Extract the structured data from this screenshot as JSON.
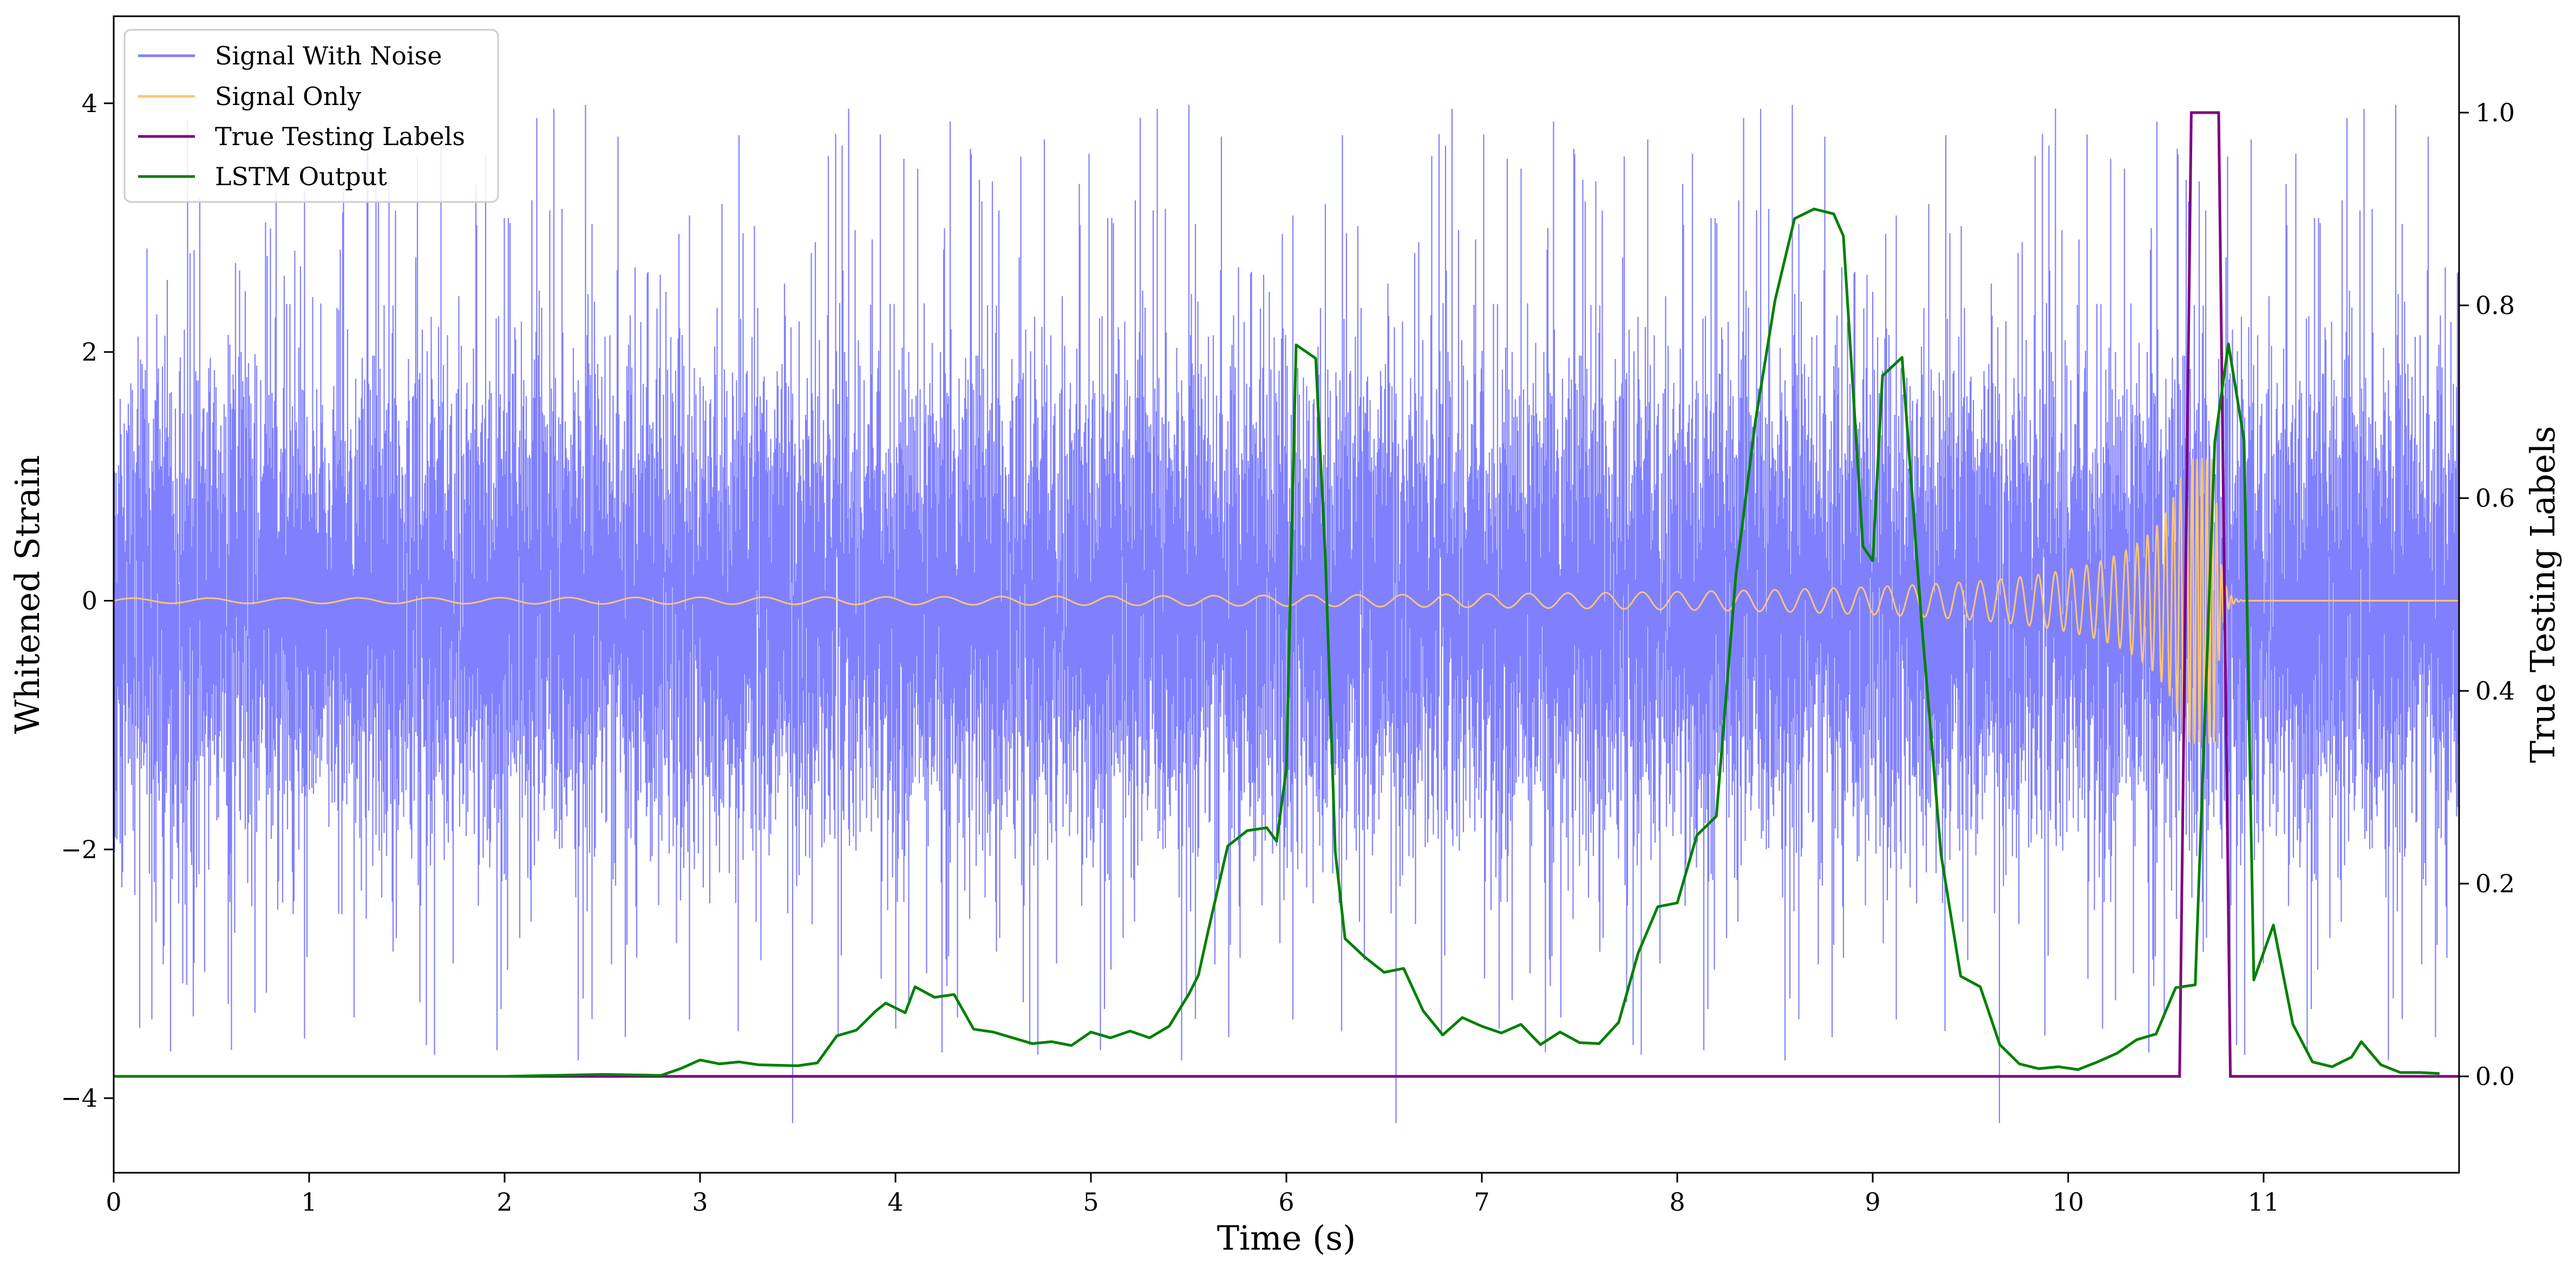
{
  "chart_data": {
    "type": "line",
    "xlabel": "Time (s)",
    "ylabel_left": "Whitened Strain",
    "ylabel_right": "True Testing Labels",
    "xlim": [
      0,
      12
    ],
    "ylim_left": [
      -4.6,
      4.7
    ],
    "ylim_right": [
      -0.1,
      1.1
    ],
    "x_ticks": [
      0,
      1,
      2,
      3,
      4,
      5,
      6,
      7,
      8,
      9,
      10,
      11
    ],
    "x_tick_labels": [
      "0",
      "1",
      "2",
      "3",
      "4",
      "5",
      "6",
      "7",
      "8",
      "9",
      "10",
      "11"
    ],
    "y_left_ticks": [
      -4,
      -2,
      0,
      2,
      4
    ],
    "y_left_tick_labels": [
      "−4",
      "−2",
      "0",
      "2",
      "4"
    ],
    "y_right_ticks": [
      0.0,
      0.2,
      0.4,
      0.6,
      0.8,
      1.0
    ],
    "y_right_tick_labels": [
      "0.0",
      "0.2",
      "0.4",
      "0.6",
      "0.8",
      "1.0"
    ],
    "grid": false,
    "legend_position": "upper-left",
    "colors": {
      "noise": "#8080ff",
      "signal": "#ffc870",
      "labels": "#800080",
      "lstm": "#008000"
    },
    "series": [
      {
        "name": "Signal With Noise",
        "axis": "left",
        "description_samples": "dense gaussian-like whitened strain noise, amplitude mostly within ±3, spikes to about ±4.2",
        "envelope": {
          "typical_abs": 2.8,
          "peak_max": 4.2,
          "peak_min": -4.2
        }
      },
      {
        "name": "Signal Only",
        "axis": "left",
        "chirp": {
          "start_time": 0.0,
          "merger_time": 10.75,
          "end_time": 12.0,
          "amp_start": 0.02,
          "amp_merger": 1.15,
          "freq_start_hz": 2.5,
          "freq_merger_hz": 40
        }
      },
      {
        "name": "True Testing Labels",
        "axis": "right",
        "x": [
          0,
          10.57,
          10.63,
          10.77,
          10.83,
          12
        ],
        "y": [
          0,
          0,
          1,
          1,
          0,
          0
        ]
      },
      {
        "name": "LSTM Output",
        "axis": "right",
        "x": [
          0,
          1,
          2,
          2.5,
          2.8,
          2.9,
          3.0,
          3.1,
          3.2,
          3.3,
          3.5,
          3.6,
          3.7,
          3.8,
          3.9,
          3.95,
          4.05,
          4.1,
          4.2,
          4.3,
          4.4,
          4.5,
          4.6,
          4.7,
          4.8,
          4.9,
          5.0,
          5.1,
          5.2,
          5.3,
          5.4,
          5.5,
          5.55,
          5.6,
          5.7,
          5.8,
          5.9,
          5.95,
          6.0,
          6.05,
          6.15,
          6.2,
          6.25,
          6.3,
          6.4,
          6.5,
          6.6,
          6.7,
          6.8,
          6.9,
          7.0,
          7.1,
          7.2,
          7.3,
          7.4,
          7.5,
          7.6,
          7.7,
          7.8,
          7.9,
          8.0,
          8.1,
          8.2,
          8.3,
          8.4,
          8.5,
          8.6,
          8.7,
          8.8,
          8.85,
          8.95,
          9.0,
          9.05,
          9.15,
          9.25,
          9.35,
          9.45,
          9.55,
          9.65,
          9.75,
          9.85,
          9.95,
          10.05,
          10.15,
          10.25,
          10.35,
          10.45,
          10.55,
          10.65,
          10.75,
          10.82,
          10.9,
          10.95,
          11.05,
          11.15,
          11.25,
          11.35,
          11.45,
          11.5,
          11.6,
          11.7,
          11.8,
          11.9
        ],
        "y": [
          0.0,
          0.0,
          0.0,
          0.002,
          0.001,
          0.008,
          0.017,
          0.013,
          0.015,
          0.012,
          0.011,
          0.014,
          0.042,
          0.048,
          0.068,
          0.076,
          0.066,
          0.093,
          0.082,
          0.085,
          0.049,
          0.046,
          0.04,
          0.034,
          0.036,
          0.032,
          0.046,
          0.04,
          0.047,
          0.04,
          0.052,
          0.085,
          0.105,
          0.151,
          0.239,
          0.255,
          0.258,
          0.244,
          0.319,
          0.759,
          0.745,
          0.536,
          0.233,
          0.143,
          0.124,
          0.108,
          0.112,
          0.068,
          0.043,
          0.061,
          0.052,
          0.045,
          0.054,
          0.033,
          0.046,
          0.035,
          0.034,
          0.056,
          0.128,
          0.176,
          0.18,
          0.25,
          0.27,
          0.52,
          0.68,
          0.805,
          0.89,
          0.9,
          0.895,
          0.872,
          0.55,
          0.535,
          0.727,
          0.746,
          0.471,
          0.23,
          0.104,
          0.093,
          0.033,
          0.013,
          0.008,
          0.01,
          0.007,
          0.015,
          0.024,
          0.038,
          0.044,
          0.092,
          0.095,
          0.658,
          0.76,
          0.66,
          0.1,
          0.157,
          0.054,
          0.015,
          0.01,
          0.02,
          0.036,
          0.012,
          0.004,
          0.004,
          0.003
        ]
      }
    ]
  },
  "legend": {
    "items": [
      {
        "label": "Signal With Noise",
        "color": "#8080ff"
      },
      {
        "label": "Signal Only",
        "color": "#ffc870"
      },
      {
        "label": "True Testing Labels",
        "color": "#800080"
      },
      {
        "label": "LSTM Output",
        "color": "#008000"
      }
    ]
  }
}
